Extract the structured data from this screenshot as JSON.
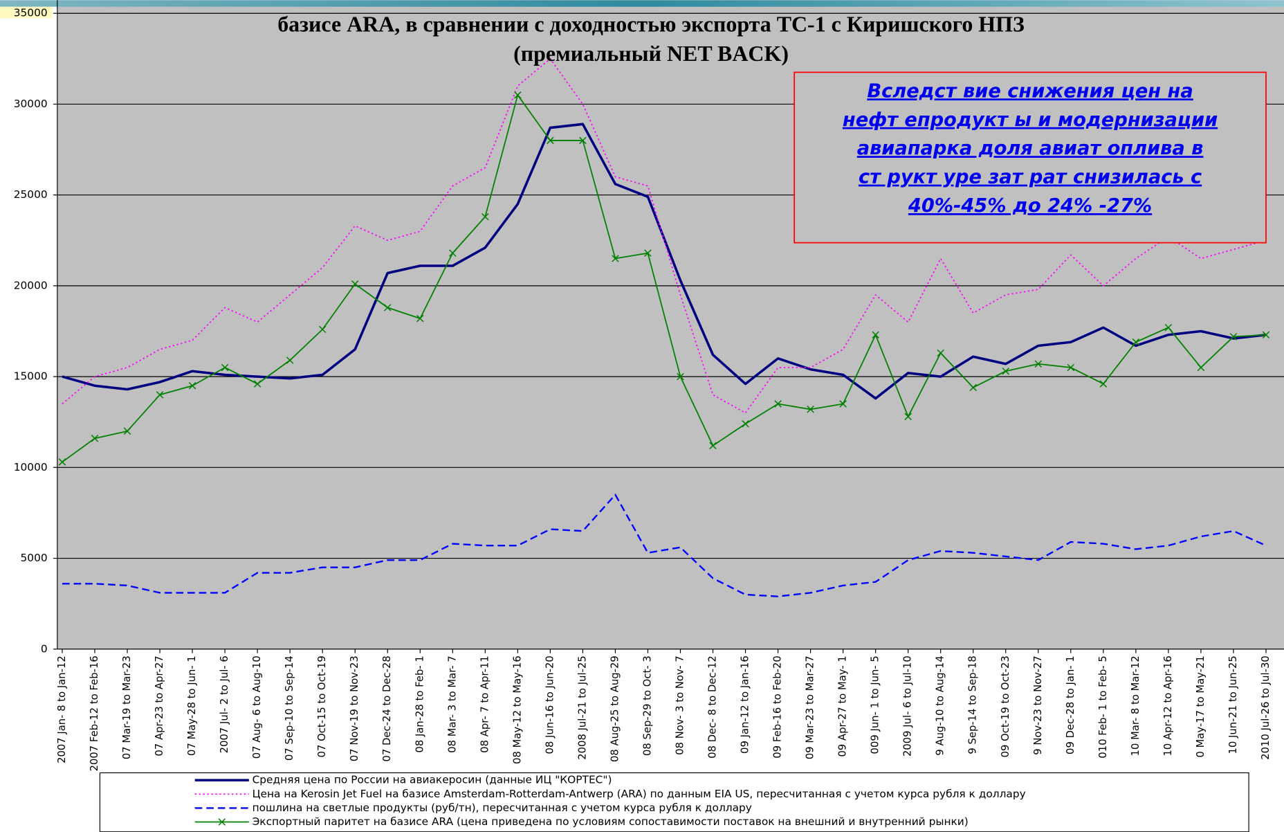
{
  "chart_data": {
    "type": "line",
    "title": "базисе ARA, в сравнении с доходностью экспорта ТС-1 с Киришского НПЗ",
    "subtitle": "(премиальный NET BACK)",
    "annotation": [
      "Вследст вие снижения цен на",
      "нефт епродукт ы и модернизации",
      "авиапарка доля авиат оплива в",
      "ст рукт уре зат рат  снизилась с",
      "40%-45% до 24% -27%"
    ],
    "categories": [
      "2007 Jan- 8 to Jan-12",
      "2007 Feb-12 to Feb-16",
      "07 Mar-19 to Mar-23",
      "07 Apr-23 to Apr-27",
      "07 May-28 to Jun- 1",
      "2007 Jul- 2 to Jul- 6",
      "07 Aug- 6 to Aug-10",
      "07 Sep-10 to Sep-14",
      "07 Oct-15 to Oct-19",
      "07 Nov-19 to Nov-23",
      "07 Dec-24 to Dec-28",
      "08 Jan-28 to Feb- 1",
      "08 Mar- 3 to Mar- 7",
      "08 Apr- 7 to Apr-11",
      "08 May-12 to May-16",
      "08 Jun-16 to Jun-20",
      "2008 Jul-21 to Jul-25",
      "08 Aug-25 to Aug-29",
      "08 Sep-29 to Oct- 3",
      "08 Nov- 3 to Nov- 7",
      "08 Dec- 8 to Dec-12",
      "09 Jan-12 to Jan-16",
      "09 Feb-16 to Feb-20",
      "09 Mar-23 to Mar-27",
      "09 Apr-27 to May- 1",
      "009 Jun- 1 to Jun- 5",
      "2009 Jul- 6 to Jul-10",
      "9 Aug-10 to Aug-14",
      "9 Sep-14 to Sep-18",
      "09 Oct-19 to Oct-23",
      "9 Nov-23 to Nov-27",
      "09 Dec-28 to Jan- 1",
      "010 Feb- 1 to Feb- 5",
      "10 Mar- 8 to Mar-12",
      "10 Apr-12 to Apr-16",
      "0 May-17 to May-21",
      "10 Jun-21 to Jun-25",
      "2010 Jul-26 to Jul-30"
    ],
    "series": [
      {
        "name": "Средняя цена по России на авиакеросин (данные ИЦ \"КОРТЕС\")",
        "color": "#000080",
        "style": "solid",
        "values": [
          15000,
          14500,
          14300,
          14700,
          15300,
          15100,
          15000,
          14900,
          15100,
          16500,
          20700,
          21100,
          21100,
          22100,
          24500,
          28700,
          28900,
          25600,
          24900,
          20300,
          16200,
          14600,
          16000,
          15400,
          15100,
          13800,
          15200,
          15000,
          16100,
          15700,
          16700,
          16900,
          17700,
          16700,
          17300,
          17500,
          17100,
          17300
        ]
      },
      {
        "name": "Цена на  Kerosin Jet Fuel на базисе Amsterdam-Rotterdam-Antwerp (ARA) по данным EIA US, пересчитанная с учетом курса рубля к доллару",
        "color": "#ff00ff",
        "style": "dotted",
        "values": [
          13500,
          15000,
          15500,
          16500,
          17000,
          18800,
          18000,
          19500,
          21000,
          23300,
          22500,
          23000,
          25500,
          26500,
          31000,
          32500,
          30000,
          26000,
          25500,
          19500,
          14000,
          13000,
          15500,
          15500,
          16500,
          19500,
          18000,
          21500,
          18500,
          19500,
          19800,
          21700,
          20000,
          21500,
          22700,
          21500,
          22000,
          22500
        ]
      },
      {
        "name": "пошлина на светлые продукты (руб/тн), пересчитанная с учетом курса рубля к доллару",
        "color": "#0000ff",
        "style": "dashed",
        "values": [
          3600,
          3600,
          3500,
          3100,
          3100,
          3100,
          4200,
          4200,
          4500,
          4500,
          4900,
          4900,
          5800,
          5700,
          5700,
          6600,
          6500,
          8500,
          5300,
          5600,
          3900,
          3000,
          2900,
          3100,
          3500,
          3700,
          4900,
          5400,
          5300,
          5100,
          4900,
          5900,
          5800,
          5500,
          5700,
          6200,
          6500,
          5700
        ]
      },
      {
        "name": "Экспортный паритет на базисе ARA (цена приведена по условиям сопоставимости поставок на внешний и внутренний рынки)",
        "color": "#008000",
        "style": "solid-x",
        "values": [
          10300,
          11600,
          12000,
          14000,
          14500,
          15500,
          14600,
          15900,
          17600,
          20100,
          18800,
          18200,
          21800,
          23800,
          30500,
          28000,
          28000,
          21500,
          21800,
          15000,
          11200,
          12400,
          13500,
          13200,
          13500,
          17300,
          12800,
          16300,
          14400,
          15300,
          15700,
          15500,
          14600,
          16900,
          17700,
          15500,
          17200,
          17300
        ]
      }
    ],
    "ylim": [
      0,
      35000
    ],
    "yticks": [
      0,
      5000,
      10000,
      15000,
      20000,
      25000,
      30000,
      35000
    ],
    "grid": true,
    "legend": "bottom",
    "background": "#c0c0c0"
  }
}
